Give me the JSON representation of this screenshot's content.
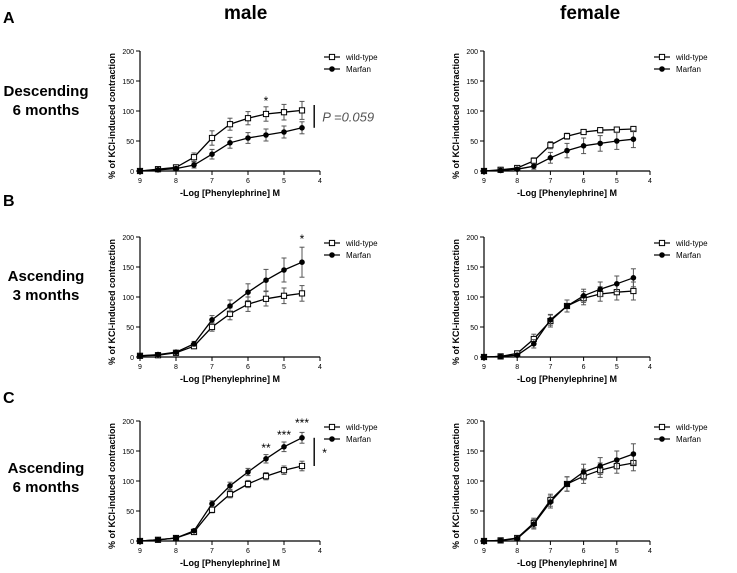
{
  "column_titles": [
    "male",
    "female"
  ],
  "rows": [
    {
      "letter": "A",
      "label_line1": "Descending",
      "label_line2": "6 months"
    },
    {
      "letter": "B",
      "label_line1": "Ascending",
      "label_line2": "3 months"
    },
    {
      "letter": "C",
      "label_line1": "Ascending",
      "label_line2": "6 months"
    }
  ],
  "colors": {
    "axis": "#000000",
    "wildtype_fill": "#ffffff",
    "marfan_fill": "#000000",
    "error": "#555555"
  },
  "chart_data": [
    {
      "id": "A-male",
      "type": "line",
      "xlabel": "-Log [Phenylephrine] M",
      "ylabel": "% of KCl-induced contraction",
      "ylim": [
        0,
        200
      ],
      "yticks": [
        "0",
        "50",
        "100",
        "150",
        "200"
      ],
      "xlim": [
        9,
        4
      ],
      "xticks": [
        "9",
        "8",
        "7",
        "6",
        "5",
        "4"
      ],
      "x": [
        9,
        8.5,
        8,
        7.5,
        7,
        6.5,
        6,
        5.5,
        5,
        4.5
      ],
      "series": [
        {
          "name": "wild-type",
          "values": [
            0,
            3,
            6,
            23,
            55,
            78,
            88,
            95,
            98,
            101
          ],
          "errors": [
            2,
            3,
            4,
            7,
            12,
            10,
            11,
            12,
            13,
            15
          ]
        },
        {
          "name": "Marfan",
          "values": [
            0,
            2,
            4,
            10,
            28,
            47,
            55,
            60,
            65,
            72
          ],
          "errors": [
            2,
            2,
            3,
            5,
            8,
            9,
            9,
            10,
            10,
            10
          ]
        }
      ],
      "legend": [
        "wild-type",
        "Marfan"
      ],
      "annotations": [
        {
          "text": "*",
          "x": 5.5,
          "y": 110
        }
      ],
      "bracket": {
        "y_from": 72,
        "y_to": 110,
        "x": 4.3,
        "label": "P =0.059",
        "label_style": "italic"
      }
    },
    {
      "id": "A-female",
      "type": "line",
      "xlabel": "-Log [Phenylephrine] M",
      "ylabel": "% of KCl-induced contraction",
      "ylim": [
        0,
        200
      ],
      "yticks": [
        "0",
        "50",
        "100",
        "150",
        "200"
      ],
      "xlim": [
        9,
        4
      ],
      "xticks": [
        "9",
        "8",
        "7",
        "6",
        "5",
        "4"
      ],
      "x": [
        9,
        8.5,
        8,
        7.5,
        7,
        6.5,
        6,
        5.5,
        5,
        4.5
      ],
      "series": [
        {
          "name": "wild-type",
          "values": [
            0,
            2,
            5,
            17,
            43,
            58,
            65,
            68,
            69,
            70
          ],
          "errors": [
            2,
            2,
            3,
            5,
            6,
            5,
            4,
            4,
            4,
            4
          ]
        },
        {
          "name": "Marfan",
          "values": [
            0,
            1,
            3,
            8,
            22,
            34,
            42,
            46,
            50,
            53
          ],
          "errors": [
            2,
            2,
            3,
            5,
            9,
            12,
            13,
            13,
            14,
            14
          ]
        }
      ],
      "legend": [
        "wild-type",
        "Marfan"
      ],
      "annotations": []
    },
    {
      "id": "B-male",
      "type": "line",
      "xlabel": "-Log [Phenylephrine] M",
      "ylabel": "% of KCl-induced contraction",
      "ylim": [
        0,
        200
      ],
      "yticks": [
        "0",
        "50",
        "100",
        "150",
        "200"
      ],
      "xlim": [
        9,
        4
      ],
      "xticks": [
        "9",
        "8",
        "7",
        "6",
        "5",
        "4"
      ],
      "x": [
        9,
        8.5,
        8,
        7.5,
        7,
        6.5,
        6,
        5.5,
        5,
        4.5
      ],
      "series": [
        {
          "name": "wild-type",
          "values": [
            2,
            3,
            7,
            18,
            50,
            72,
            88,
            97,
            102,
            106
          ],
          "errors": [
            2,
            2,
            3,
            4,
            7,
            10,
            12,
            12,
            13,
            13
          ]
        },
        {
          "name": "Marfan",
          "values": [
            2,
            4,
            8,
            22,
            62,
            85,
            108,
            128,
            145,
            158
          ],
          "errors": [
            2,
            2,
            3,
            4,
            7,
            10,
            14,
            18,
            20,
            25
          ]
        }
      ],
      "legend": [
        "wild-type",
        "Marfan"
      ],
      "annotations": [
        {
          "text": "*",
          "x": 4.5,
          "y": 190
        }
      ]
    },
    {
      "id": "B-female",
      "type": "line",
      "xlabel": "-Log [Phenylephrine] M",
      "ylabel": "% of KCl-induced contraction",
      "ylim": [
        0,
        200
      ],
      "yticks": [
        "0",
        "50",
        "100",
        "150",
        "200"
      ],
      "xlim": [
        9,
        4
      ],
      "xticks": [
        "9",
        "8",
        "7",
        "6",
        "5",
        "4"
      ],
      "x": [
        9,
        8.5,
        8,
        7.5,
        7,
        6.5,
        6,
        5.5,
        5,
        4.5
      ],
      "series": [
        {
          "name": "wild-type",
          "values": [
            0,
            1,
            6,
            30,
            60,
            85,
            98,
            105,
            108,
            110
          ],
          "errors": [
            2,
            2,
            4,
            8,
            10,
            10,
            11,
            12,
            13,
            15
          ]
        },
        {
          "name": "Marfan",
          "values": [
            0,
            1,
            3,
            22,
            62,
            85,
            102,
            113,
            122,
            132
          ],
          "errors": [
            2,
            2,
            3,
            7,
            9,
            10,
            11,
            12,
            13,
            15
          ]
        }
      ],
      "legend": [
        "wild-type",
        "Marfan"
      ],
      "annotations": []
    },
    {
      "id": "C-male",
      "type": "line",
      "xlabel": "-Log [Phenylephrine] M",
      "ylabel": "% of KCl-induced contraction",
      "ylim": [
        0,
        200
      ],
      "yticks": [
        "0",
        "50",
        "100",
        "150",
        "200"
      ],
      "xlim": [
        9,
        4
      ],
      "xticks": [
        "9",
        "8",
        "7",
        "6",
        "5",
        "4"
      ],
      "x": [
        9,
        8.5,
        8,
        7.5,
        7,
        6.5,
        6,
        5.5,
        5,
        4.5
      ],
      "series": [
        {
          "name": "wild-type",
          "values": [
            0,
            2,
            5,
            15,
            52,
            78,
            95,
            108,
            118,
            125
          ],
          "errors": [
            1,
            2,
            2,
            3,
            5,
            6,
            6,
            6,
            7,
            8
          ]
        },
        {
          "name": "Marfan",
          "values": [
            0,
            2,
            5,
            17,
            62,
            92,
            115,
            137,
            157,
            172
          ],
          "errors": [
            1,
            2,
            2,
            3,
            5,
            6,
            6,
            7,
            8,
            9
          ]
        }
      ],
      "legend": [
        "wild-type",
        "Marfan"
      ],
      "annotations": [
        {
          "text": "**",
          "x": 5.5,
          "y": 148
        },
        {
          "text": "***",
          "x": 5,
          "y": 170
        },
        {
          "text": "***",
          "x": 4.5,
          "y": 190
        }
      ],
      "bracket": {
        "y_from": 125,
        "y_to": 172,
        "x": 4.3,
        "label": "*",
        "label_style": "normal"
      }
    },
    {
      "id": "C-female",
      "type": "line",
      "xlabel": "-Log [Phenylephrine] M",
      "ylabel": "% of KCl-induced contraction",
      "ylim": [
        0,
        200
      ],
      "yticks": [
        "0",
        "50",
        "100",
        "150",
        "200"
      ],
      "xlim": [
        9,
        4
      ],
      "xticks": [
        "9",
        "8",
        "7",
        "6",
        "5",
        "4"
      ],
      "x": [
        9,
        8.5,
        8,
        7.5,
        7,
        6.5,
        6,
        5.5,
        5,
        4.5
      ],
      "series": [
        {
          "name": "wild-type",
          "values": [
            0,
            1,
            5,
            30,
            68,
            95,
            108,
            118,
            125,
            130
          ],
          "errors": [
            1,
            2,
            3,
            8,
            10,
            12,
            12,
            12,
            12,
            13
          ]
        },
        {
          "name": "Marfan",
          "values": [
            0,
            1,
            4,
            28,
            65,
            95,
            115,
            125,
            135,
            145
          ],
          "errors": [
            1,
            2,
            3,
            8,
            10,
            12,
            13,
            14,
            15,
            17
          ]
        }
      ],
      "legend": [
        "wild-type",
        "Marfan"
      ],
      "annotations": []
    }
  ]
}
